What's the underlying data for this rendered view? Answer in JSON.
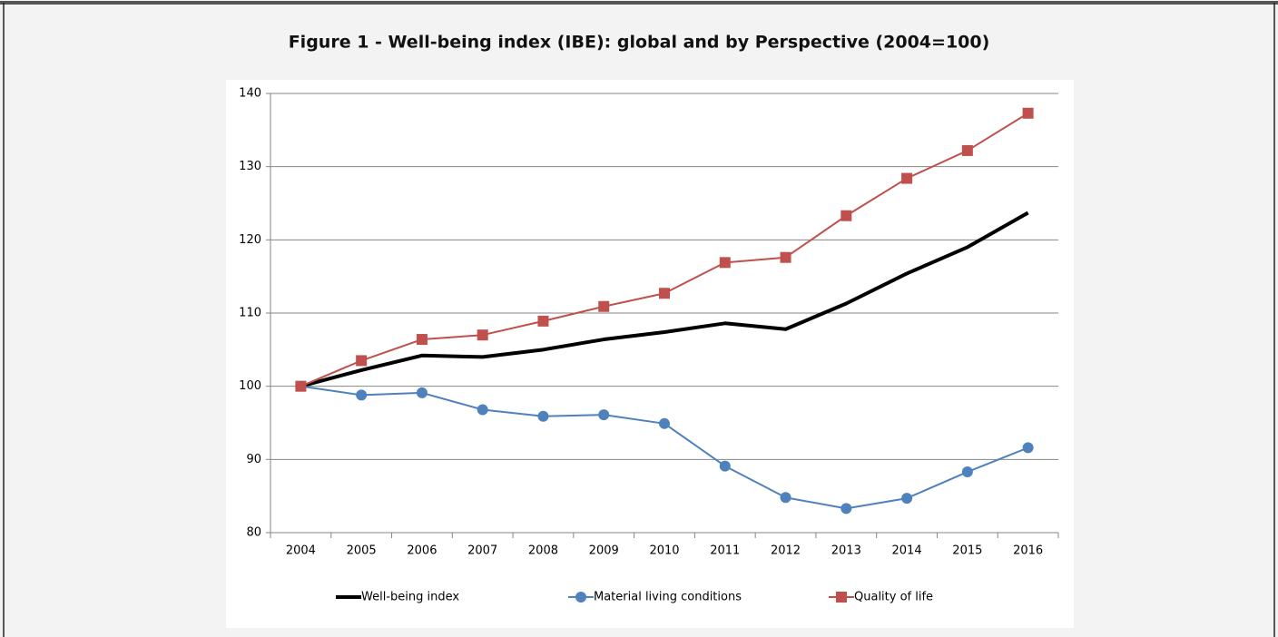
{
  "chart_data": {
    "type": "line",
    "title": "Figure 1 - Well-being index (IBE): global and by Perspective (2004=100)",
    "categories": [
      "2004",
      "2005",
      "2006",
      "2007",
      "2008",
      "2009",
      "2010",
      "2011",
      "2012",
      "2013",
      "2014",
      "2015",
      "2016"
    ],
    "series": [
      {
        "name": "Well-being index",
        "color": "#000000",
        "marker": "none",
        "values": [
          100,
          102.2,
          104.2,
          104,
          105,
          106.4,
          107.4,
          108.6,
          107.8,
          111.3,
          115.4,
          119,
          123.7
        ]
      },
      {
        "name": "Material living conditions",
        "color": "#4f81bd",
        "marker": "circle",
        "values": [
          100,
          98.8,
          99.1,
          96.8,
          95.9,
          96.1,
          94.9,
          89.1,
          84.8,
          83.3,
          84.7,
          88.3,
          91.6
        ]
      },
      {
        "name": "Quality of life",
        "color": "#c0504d",
        "marker": "square",
        "values": [
          100,
          103.5,
          106.4,
          107,
          108.9,
          110.9,
          112.7,
          116.9,
          117.6,
          123.3,
          128.4,
          132.2,
          137.3
        ]
      }
    ],
    "ylim": [
      80,
      140
    ],
    "yticks": [
      80,
      90,
      100,
      110,
      120,
      130,
      140
    ],
    "grid": true,
    "legend": "bottom"
  }
}
